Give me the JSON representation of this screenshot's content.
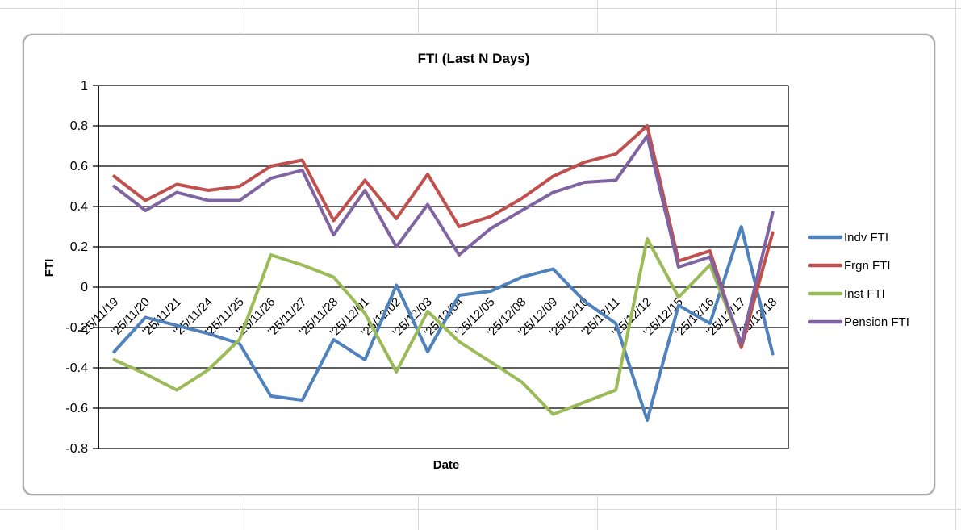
{
  "chart_data": {
    "type": "line",
    "title": "FTI (Last N Days)",
    "xlabel": "Date",
    "ylabel": "FTI",
    "ylim": [
      -0.8,
      1.0
    ],
    "grid": true,
    "legend_position": "right",
    "y_ticks": [
      1,
      0.8,
      0.6,
      0.4,
      0.2,
      0,
      -0.2,
      -0.4,
      -0.6,
      -0.8
    ],
    "y_tick_labels": [
      "1",
      "0.8",
      "0.6",
      "0.4",
      "0.2",
      "0",
      "-0.2",
      "-0.4",
      "-0.6",
      "-0.8"
    ],
    "categories": [
      "'25/11/19",
      "'25/11/20",
      "'25/11/21",
      "'25/11/24",
      "'25/11/25",
      "'25/11/26",
      "'25/11/27",
      "'25/11/28",
      "'25/12/01",
      "'25/12/02",
      "'25/12/03",
      "'25/12/04",
      "'25/12/05",
      "'25/12/08",
      "'25/12/09",
      "'25/12/10",
      "'25/12/11",
      "'25/12/12",
      "'25/12/15",
      "'25/12/16",
      "'25/12/17",
      "'25/12/18"
    ],
    "series": [
      {
        "name": "Indv FTI",
        "color": "#4F81BD",
        "values": [
          -0.32,
          -0.15,
          -0.19,
          -0.23,
          -0.28,
          -0.54,
          -0.56,
          -0.26,
          -0.36,
          0.01,
          -0.32,
          -0.04,
          -0.02,
          0.05,
          0.09,
          -0.07,
          -0.18,
          -0.66,
          -0.09,
          -0.18,
          0.3,
          -0.33
        ]
      },
      {
        "name": "Frgn FTI",
        "color": "#C0504D",
        "values": [
          0.55,
          0.43,
          0.51,
          0.48,
          0.5,
          0.6,
          0.63,
          0.33,
          0.53,
          0.34,
          0.56,
          0.3,
          0.35,
          0.44,
          0.55,
          0.62,
          0.66,
          0.8,
          0.13,
          0.18,
          -0.3,
          0.27
        ]
      },
      {
        "name": "Inst FTI",
        "color": "#9BBB59",
        "values": [
          -0.36,
          -0.43,
          -0.51,
          -0.41,
          -0.26,
          0.16,
          0.11,
          0.05,
          -0.13,
          -0.42,
          -0.12,
          -0.27,
          -0.37,
          -0.47,
          -0.63,
          -0.57,
          -0.51,
          0.24,
          -0.05,
          0.11,
          -0.28,
          null
        ]
      },
      {
        "name": "Pension FTI",
        "color": "#8064A2",
        "values": [
          0.5,
          0.38,
          0.47,
          0.43,
          0.43,
          0.54,
          0.58,
          0.26,
          0.48,
          0.2,
          0.41,
          0.16,
          0.29,
          0.38,
          0.47,
          0.52,
          0.53,
          0.75,
          0.1,
          0.15,
          -0.28,
          0.37
        ]
      }
    ]
  }
}
